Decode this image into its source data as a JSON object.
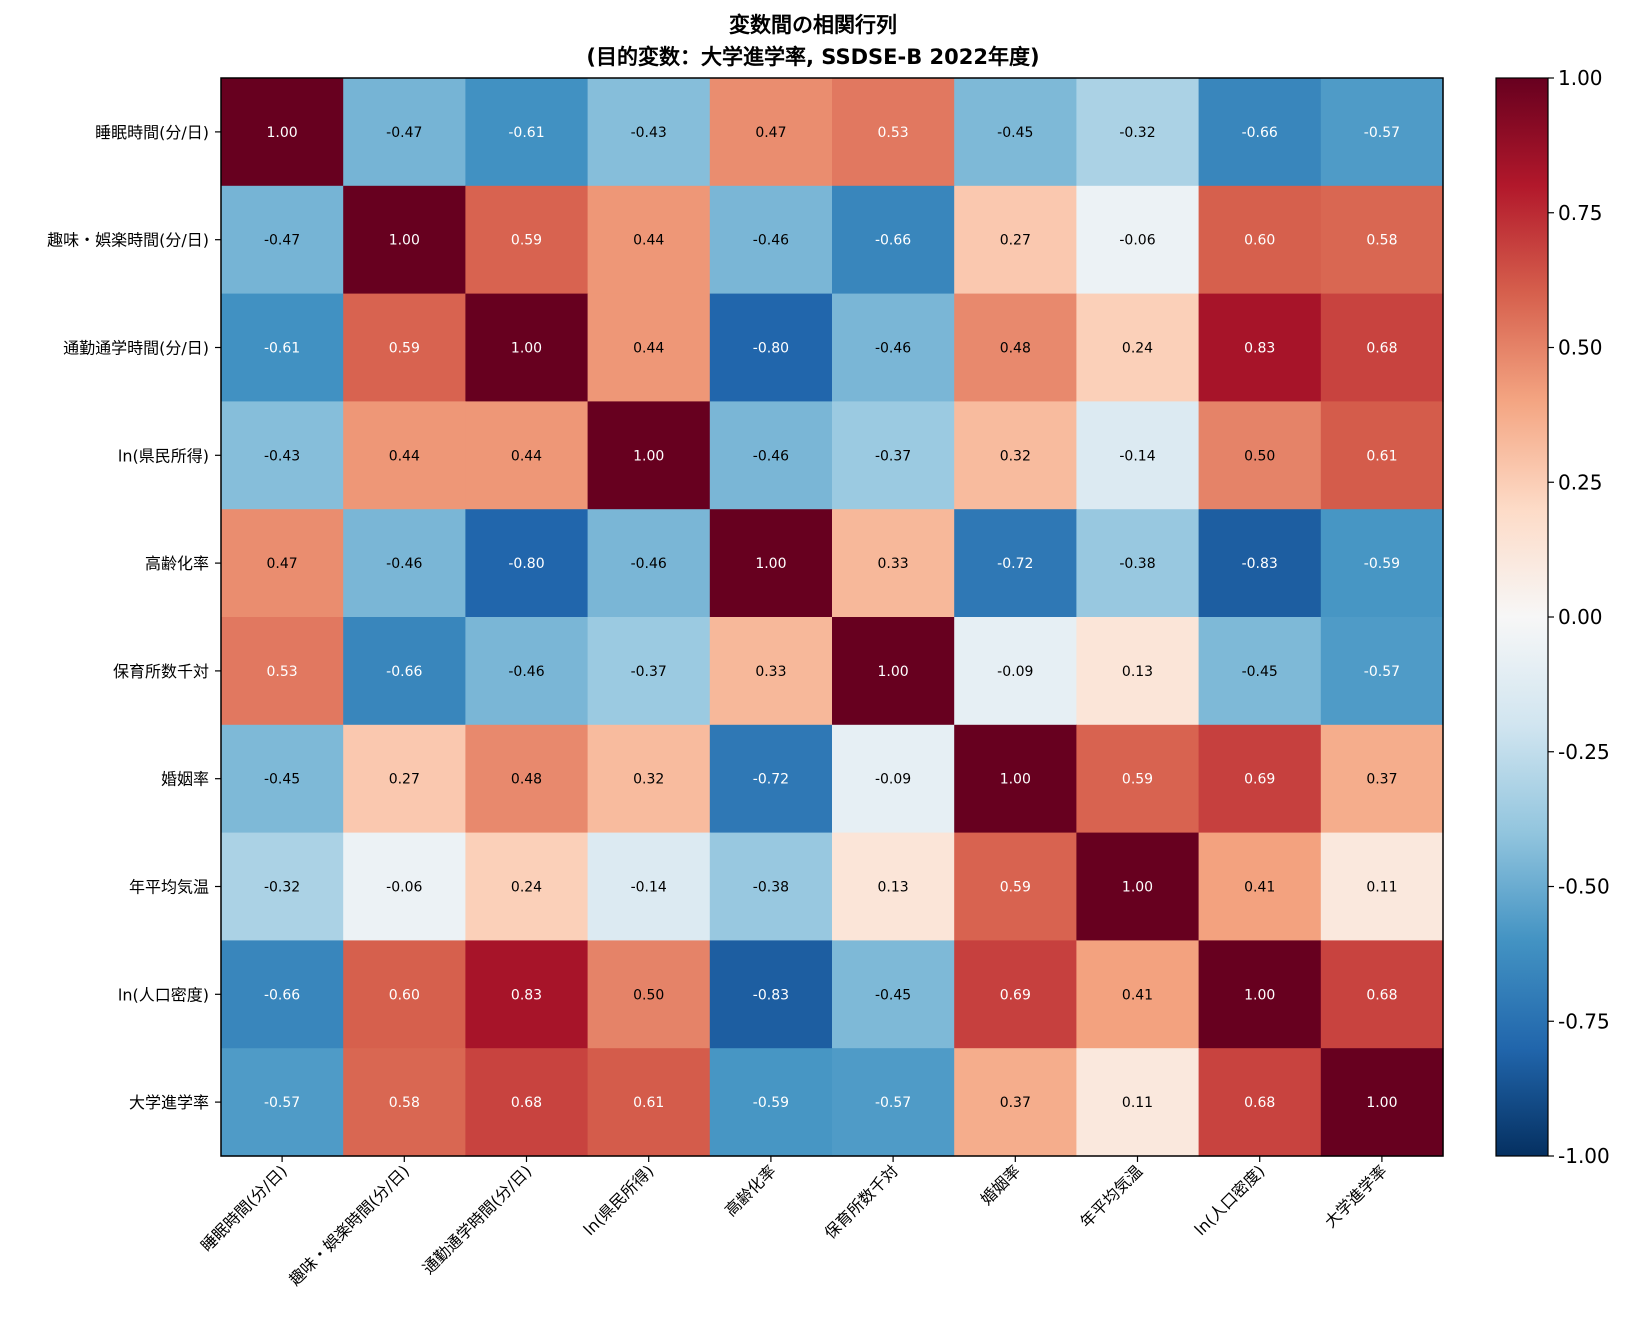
{
  "chart_data": {
    "type": "heatmap",
    "title_line1": "変数間の相関行列",
    "title_line2": "(目的変数：大学進学率, SSDSE-B 2022年度)",
    "labels": [
      "睡眠時間(分/日)",
      "趣味・娯楽時間(分/日)",
      "通勤通学時間(分/日)",
      "ln(県民所得)",
      "高齢化率",
      "保育所数千対",
      "婚姻率",
      "年平均気温",
      "ln(人口密度)",
      "大学進学率"
    ],
    "matrix": [
      [
        1.0,
        -0.47,
        -0.61,
        -0.43,
        0.47,
        0.53,
        -0.45,
        -0.32,
        -0.66,
        -0.57
      ],
      [
        -0.47,
        1.0,
        0.59,
        0.44,
        -0.46,
        -0.66,
        0.27,
        -0.06,
        0.6,
        0.58
      ],
      [
        -0.61,
        0.59,
        1.0,
        0.44,
        -0.8,
        -0.46,
        0.48,
        0.24,
        0.83,
        0.68
      ],
      [
        -0.43,
        0.44,
        0.44,
        1.0,
        -0.46,
        -0.37,
        0.32,
        -0.14,
        0.5,
        0.61
      ],
      [
        0.47,
        -0.46,
        -0.8,
        -0.46,
        1.0,
        0.33,
        -0.72,
        -0.38,
        -0.83,
        -0.59
      ],
      [
        0.53,
        -0.66,
        -0.46,
        -0.37,
        0.33,
        1.0,
        -0.09,
        0.13,
        -0.45,
        -0.57
      ],
      [
        -0.45,
        0.27,
        0.48,
        0.32,
        -0.72,
        -0.09,
        1.0,
        0.59,
        0.69,
        0.37
      ],
      [
        -0.32,
        -0.06,
        0.24,
        -0.14,
        -0.38,
        0.13,
        0.59,
        1.0,
        0.41,
        0.11
      ],
      [
        -0.66,
        0.6,
        0.83,
        0.5,
        -0.83,
        -0.45,
        0.69,
        0.41,
        1.0,
        0.68
      ],
      [
        -0.57,
        0.58,
        0.68,
        0.61,
        -0.59,
        -0.57,
        0.37,
        0.11,
        0.68,
        1.0
      ]
    ],
    "value_format": "0.00",
    "colormap": "RdBu_r",
    "vmin": -1.0,
    "vmax": 1.0,
    "colorbar_ticks": [
      1.0,
      0.75,
      0.5,
      0.25,
      0.0,
      -0.25,
      -0.5,
      -0.75,
      -1.0
    ],
    "colorbar_tick_labels": [
      "1.00",
      "0.75",
      "0.50",
      "0.25",
      "0.00",
      "-0.25",
      "-0.50",
      "-0.75",
      "-1.00"
    ],
    "colorbar_placement": "right",
    "x_tick_rotation": "45"
  }
}
